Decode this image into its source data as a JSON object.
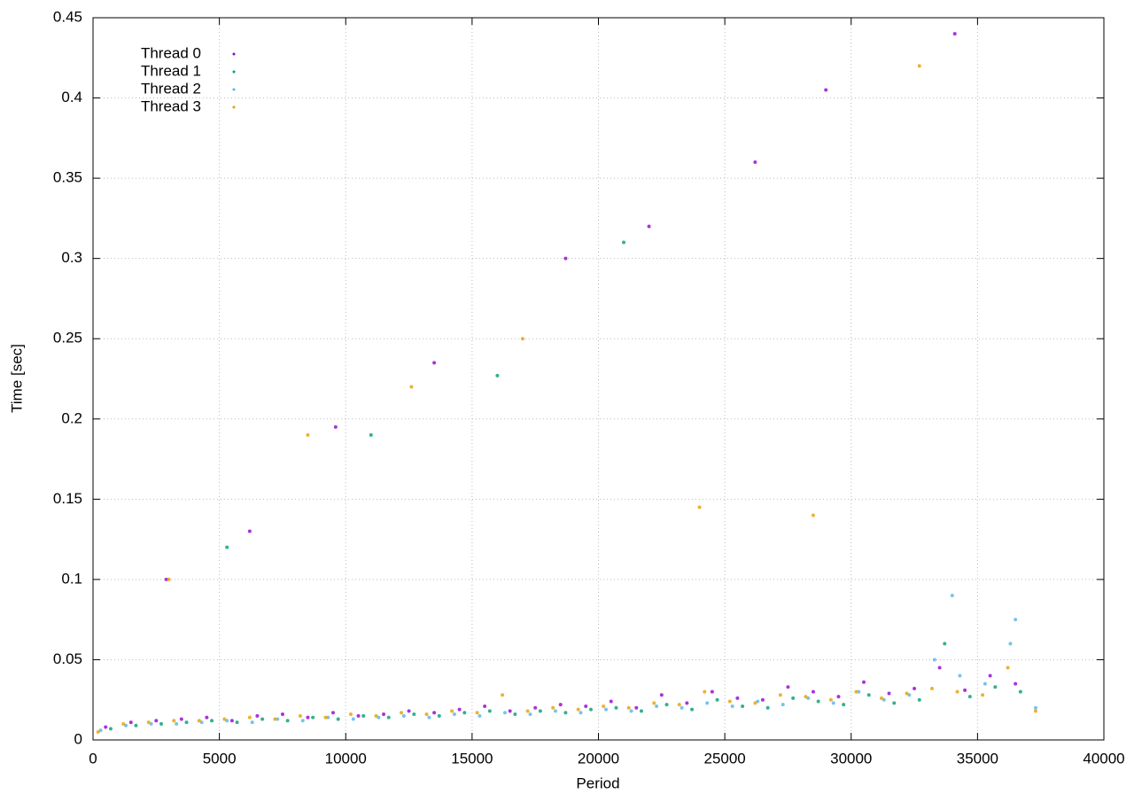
{
  "chart_data": {
    "type": "scatter",
    "x_label": "Period",
    "y_label": "Time [sec]",
    "xlim": [
      0,
      40000
    ],
    "ylim": [
      0,
      0.45
    ],
    "xticks": [
      0,
      5000,
      10000,
      15000,
      20000,
      25000,
      30000,
      35000,
      40000
    ],
    "yticks": [
      0,
      0.05,
      0.1,
      0.15,
      0.2,
      0.25,
      0.3,
      0.35,
      0.4,
      0.45
    ],
    "grid": true,
    "legend": "upper-left",
    "series": [
      {
        "name": "Thread 0",
        "color": "#9400d3",
        "x": [
          500,
          1500,
          2500,
          3500,
          4500,
          5500,
          6500,
          7500,
          8500,
          9500,
          10500,
          11500,
          12500,
          13500,
          14500,
          15500,
          16500,
          17500,
          18500,
          19500,
          20500,
          21500,
          22500,
          23500,
          24500,
          25500,
          26500,
          27500,
          28500,
          29500,
          30500,
          31500,
          32500,
          33500,
          34500,
          35500,
          36500,
          2900,
          6200,
          9600,
          13500,
          18700,
          22000,
          26200,
          29000,
          34100
        ],
        "values": [
          0.008,
          0.011,
          0.012,
          0.013,
          0.014,
          0.012,
          0.015,
          0.016,
          0.014,
          0.017,
          0.015,
          0.016,
          0.018,
          0.017,
          0.019,
          0.021,
          0.018,
          0.02,
          0.022,
          0.021,
          0.024,
          0.02,
          0.028,
          0.023,
          0.03,
          0.026,
          0.025,
          0.033,
          0.03,
          0.027,
          0.036,
          0.029,
          0.032,
          0.045,
          0.031,
          0.04,
          0.035,
          0.1,
          0.13,
          0.195,
          0.235,
          0.3,
          0.32,
          0.36,
          0.405,
          0.44
        ]
      },
      {
        "name": "Thread 1",
        "color": "#009e73",
        "x": [
          700,
          1700,
          2700,
          3700,
          4700,
          5700,
          6700,
          7700,
          8700,
          9700,
          10700,
          11700,
          12700,
          13700,
          14700,
          15700,
          16700,
          17700,
          18700,
          19700,
          20700,
          21700,
          22700,
          23700,
          24700,
          25700,
          26700,
          27700,
          28700,
          29700,
          30700,
          31700,
          32700,
          33700,
          34700,
          35700,
          36700,
          5300,
          11000,
          16000,
          21000
        ],
        "values": [
          0.007,
          0.009,
          0.01,
          0.011,
          0.012,
          0.011,
          0.013,
          0.012,
          0.014,
          0.013,
          0.015,
          0.014,
          0.016,
          0.015,
          0.017,
          0.018,
          0.016,
          0.018,
          0.017,
          0.019,
          0.02,
          0.018,
          0.022,
          0.019,
          0.025,
          0.021,
          0.02,
          0.026,
          0.024,
          0.022,
          0.028,
          0.023,
          0.025,
          0.06,
          0.027,
          0.033,
          0.03,
          0.12,
          0.19,
          0.227,
          0.31
        ]
      },
      {
        "name": "Thread 2",
        "color": "#56b4e9",
        "x": [
          300,
          1300,
          2300,
          3300,
          4300,
          5300,
          6300,
          7300,
          8300,
          9300,
          10300,
          11300,
          12300,
          13300,
          14300,
          15300,
          16300,
          17300,
          18300,
          19300,
          20300,
          21300,
          22300,
          23300,
          24300,
          25300,
          26300,
          27300,
          28300,
          29300,
          30300,
          31300,
          32300,
          33300,
          34300,
          35300,
          36300,
          37300,
          34000,
          36500
        ],
        "values": [
          0.006,
          0.009,
          0.01,
          0.01,
          0.011,
          0.012,
          0.011,
          0.013,
          0.012,
          0.014,
          0.013,
          0.014,
          0.015,
          0.014,
          0.016,
          0.015,
          0.017,
          0.016,
          0.018,
          0.017,
          0.019,
          0.018,
          0.021,
          0.02,
          0.023,
          0.021,
          0.024,
          0.022,
          0.026,
          0.023,
          0.03,
          0.025,
          0.028,
          0.05,
          0.04,
          0.035,
          0.06,
          0.02,
          0.09,
          0.075
        ]
      },
      {
        "name": "Thread 3",
        "color": "#e69f00",
        "x": [
          200,
          1200,
          2200,
          3200,
          4200,
          5200,
          6200,
          7200,
          8200,
          9200,
          10200,
          11200,
          12200,
          13200,
          14200,
          15200,
          16200,
          17200,
          18200,
          19200,
          20200,
          21200,
          22200,
          23200,
          24200,
          25200,
          26200,
          27200,
          28200,
          29200,
          30200,
          31200,
          32200,
          33200,
          34200,
          35200,
          36200,
          37300,
          3000,
          8500,
          12600,
          17000,
          24000,
          28500,
          32700
        ],
        "values": [
          0.005,
          0.01,
          0.011,
          0.012,
          0.012,
          0.013,
          0.014,
          0.013,
          0.015,
          0.014,
          0.016,
          0.015,
          0.017,
          0.016,
          0.018,
          0.017,
          0.028,
          0.018,
          0.02,
          0.019,
          0.021,
          0.02,
          0.023,
          0.022,
          0.03,
          0.024,
          0.023,
          0.028,
          0.027,
          0.025,
          0.03,
          0.026,
          0.029,
          0.032,
          0.03,
          0.028,
          0.045,
          0.018,
          0.1,
          0.19,
          0.22,
          0.25,
          0.145,
          0.14,
          0.42
        ]
      }
    ]
  }
}
